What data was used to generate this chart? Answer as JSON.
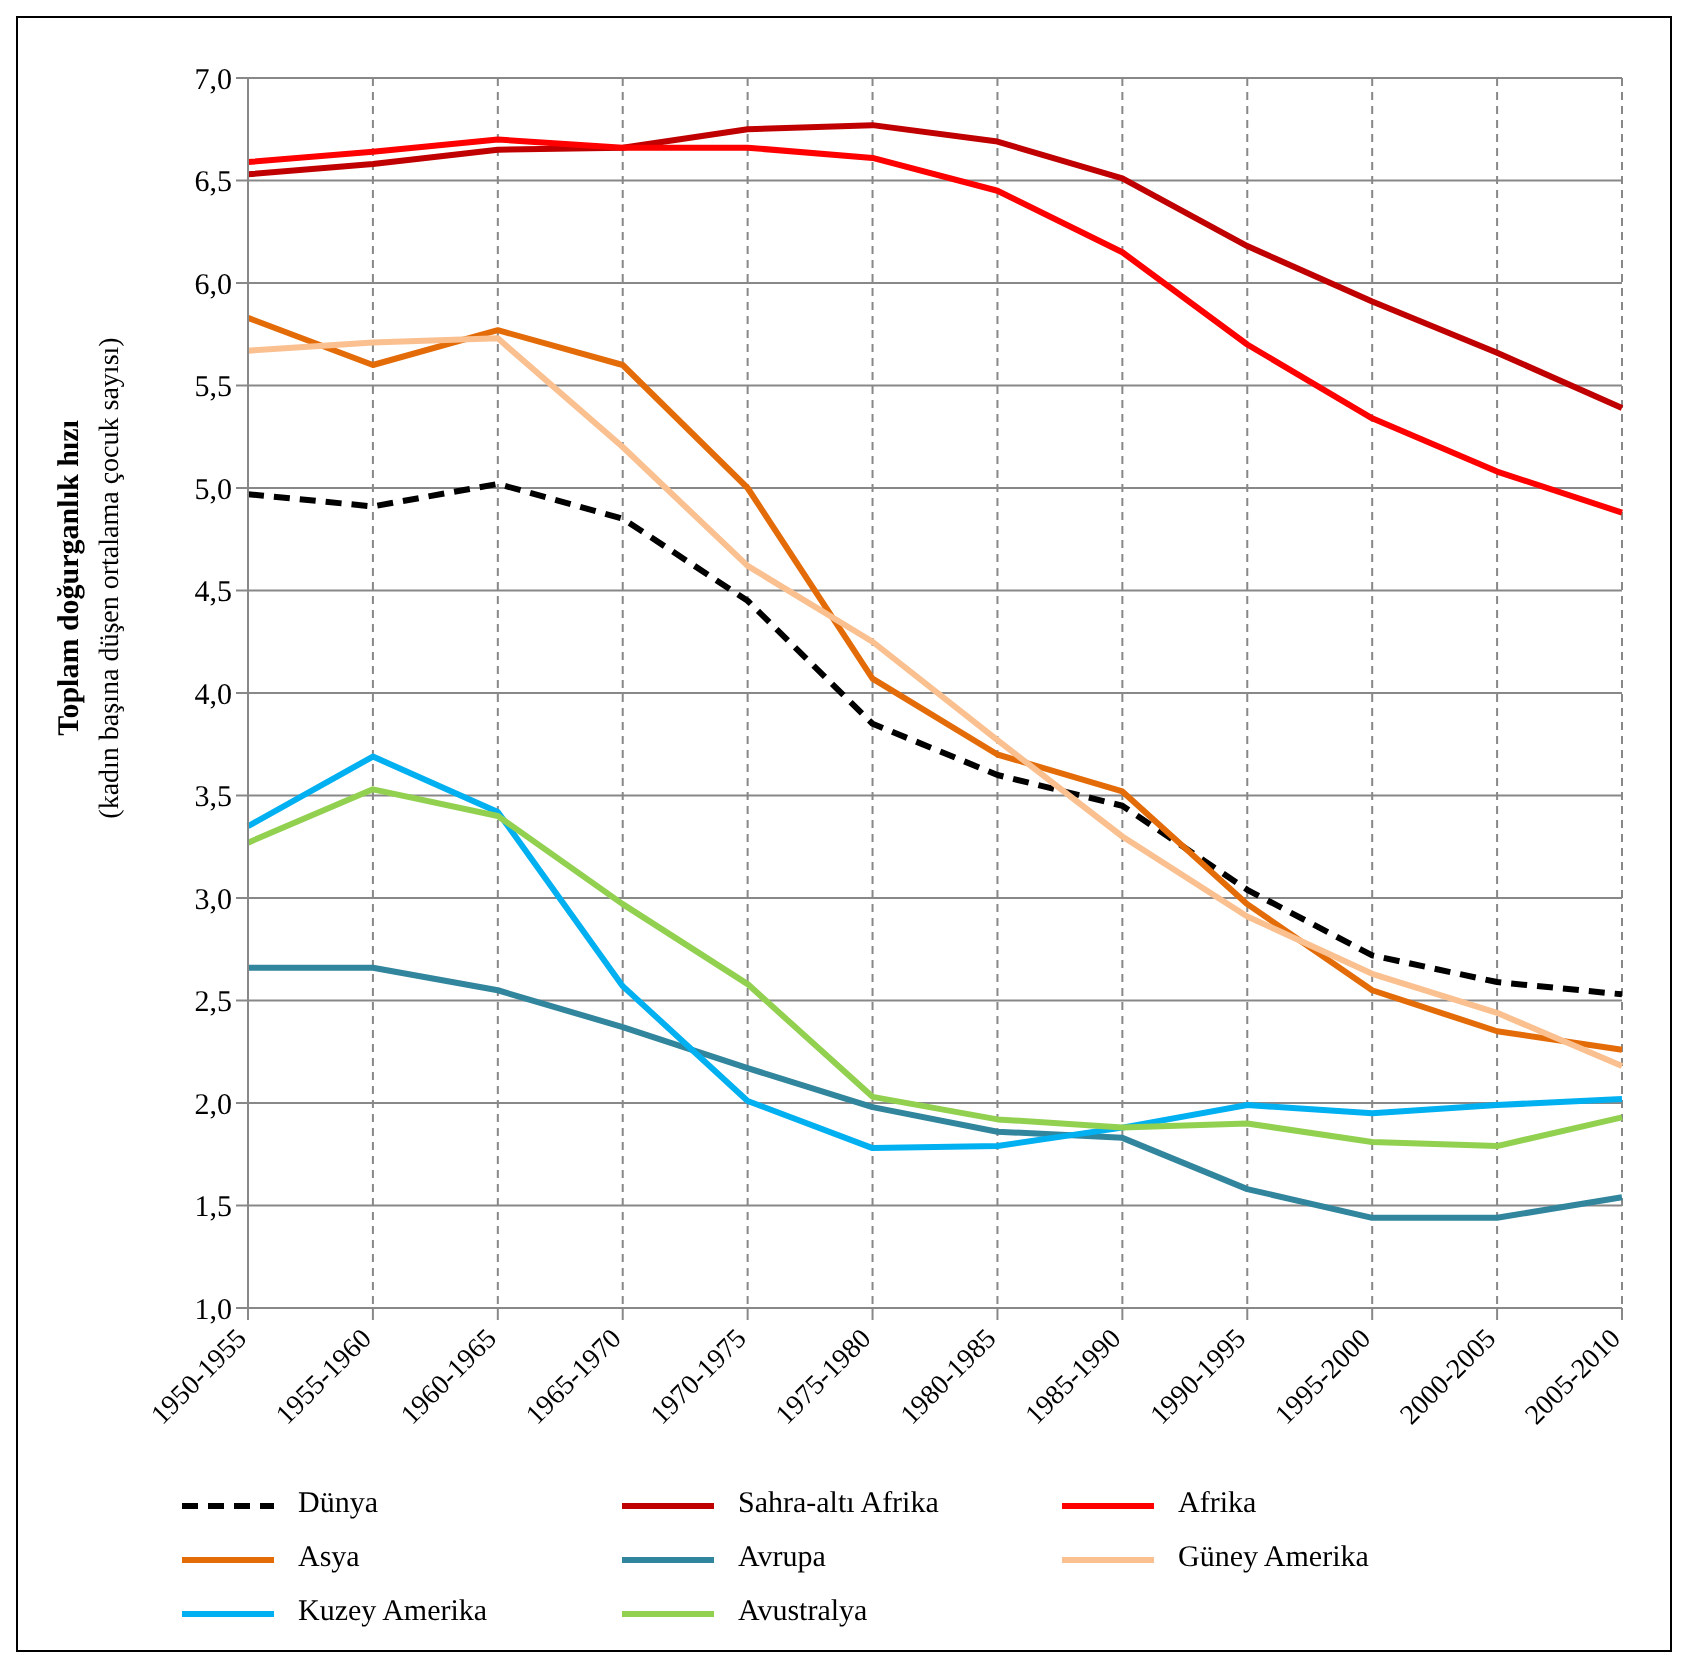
{
  "chart_data": {
    "type": "line",
    "ylabel": "Toplam doğurganlık hızı\n(kadın başına düşen ortalama çocuk sayısı)",
    "categories": [
      "1950-1955",
      "1955-1960",
      "1960-1965",
      "1965-1970",
      "1970-1975",
      "1975-1980",
      "1980-1985",
      "1985-1990",
      "1990-1995",
      "1995-2000",
      "2000-2005",
      "2005-2010"
    ],
    "ylim": [
      1,
      7
    ],
    "yticks": [
      {
        "value": 1,
        "label": "1,0"
      },
      {
        "value": 1.5,
        "label": "1,5"
      },
      {
        "value": 2,
        "label": "2,0"
      },
      {
        "value": 2.5,
        "label": "2,5"
      },
      {
        "value": 3,
        "label": "3,0"
      },
      {
        "value": 3.5,
        "label": "3,5"
      },
      {
        "value": 4,
        "label": "4,0"
      },
      {
        "value": 4.5,
        "label": "4,5"
      },
      {
        "value": 5,
        "label": "5,0"
      },
      {
        "value": 5.5,
        "label": "5,5"
      },
      {
        "value": 6,
        "label": "6,0"
      },
      {
        "value": 6.5,
        "label": "6,5"
      },
      {
        "value": 7,
        "label": "7,0"
      }
    ],
    "grid": true,
    "legend": "bottom",
    "marker": "none",
    "series": [
      {
        "name": "Dünya",
        "color": "#000000",
        "line_style": "dashed",
        "values": [
          4.97,
          4.91,
          5.02,
          4.85,
          4.45,
          3.85,
          3.6,
          3.45,
          3.04,
          2.72,
          2.59,
          2.53
        ]
      },
      {
        "name": "Sahra-altı Afrika",
        "color": "#c00000",
        "values": [
          6.53,
          6.58,
          6.65,
          6.66,
          6.75,
          6.77,
          6.69,
          6.51,
          6.18,
          5.91,
          5.66,
          5.39
        ]
      },
      {
        "name": "Afrika",
        "color": "#ff0000",
        "values": [
          6.59,
          6.64,
          6.7,
          6.66,
          6.66,
          6.61,
          6.45,
          6.15,
          5.7,
          5.34,
          5.08,
          4.88
        ]
      },
      {
        "name": "Asya",
        "color": "#e36c09",
        "values": [
          5.83,
          5.6,
          5.77,
          5.6,
          5.0,
          4.07,
          3.7,
          3.52,
          2.97,
          2.55,
          2.35,
          2.26
        ]
      },
      {
        "name": "Avrupa",
        "color": "#31859c",
        "values": [
          2.66,
          2.66,
          2.55,
          2.37,
          2.17,
          1.98,
          1.86,
          1.83,
          1.58,
          1.44,
          1.44,
          1.54
        ]
      },
      {
        "name": "Güney Amerika",
        "color": "#fac090",
        "values": [
          5.67,
          5.71,
          5.73,
          5.2,
          4.62,
          4.25,
          3.77,
          3.3,
          2.91,
          2.63,
          2.44,
          2.18
        ]
      },
      {
        "name": "Kuzey Amerika",
        "color": "#00b0f0",
        "values": [
          3.35,
          3.69,
          3.42,
          2.57,
          2.01,
          1.78,
          1.79,
          1.88,
          1.99,
          1.95,
          1.99,
          2.02
        ]
      },
      {
        "name": "Avustralya",
        "color": "#92d050",
        "values": [
          3.27,
          3.53,
          3.4,
          2.97,
          2.58,
          2.03,
          1.92,
          1.88,
          1.9,
          1.81,
          1.79,
          1.93
        ]
      }
    ]
  }
}
